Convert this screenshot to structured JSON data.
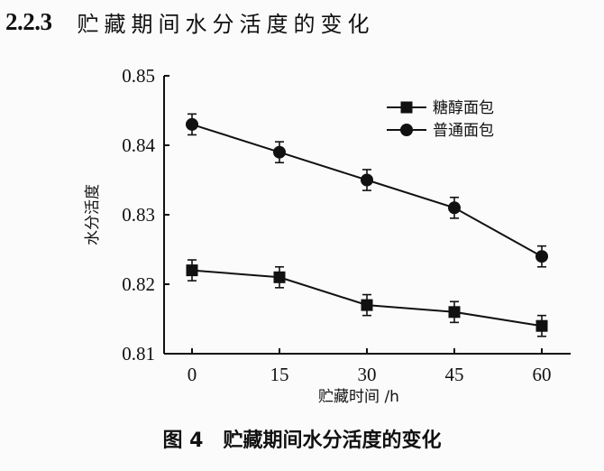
{
  "section": {
    "number": "2.2.3",
    "title": "贮藏期间水分活度的变化"
  },
  "caption": {
    "figure_label": "图 4",
    "text": "贮藏期间水分活度的变化"
  },
  "colors": {
    "line": "#111111",
    "background": "#fbfbfb"
  },
  "chart_data": {
    "type": "line",
    "title": "贮藏期间水分活度的变化",
    "xlabel": "贮藏时间 /h",
    "ylabel": "水分活度",
    "x": [
      0,
      15,
      30,
      45,
      60
    ],
    "x_tick_labels": [
      "0",
      "15",
      "30",
      "45",
      "60"
    ],
    "y_tick_labels": [
      "0.85",
      "0.84",
      "0.83",
      "0.82",
      "0.81"
    ],
    "ylim": [
      0.81,
      0.85
    ],
    "xlim": [
      -3,
      66
    ],
    "grid": false,
    "legend_position": "upper right",
    "series": [
      {
        "name": "糖醇面包",
        "marker": "square",
        "values": [
          0.822,
          0.821,
          0.817,
          0.816,
          0.814
        ],
        "error": [
          0.0015,
          0.0015,
          0.0015,
          0.0015,
          0.0015
        ]
      },
      {
        "name": "普通面包",
        "marker": "circle",
        "values": [
          0.843,
          0.839,
          0.835,
          0.831,
          0.824
        ],
        "error": [
          0.0015,
          0.0015,
          0.0015,
          0.0015,
          0.0015
        ]
      }
    ]
  }
}
